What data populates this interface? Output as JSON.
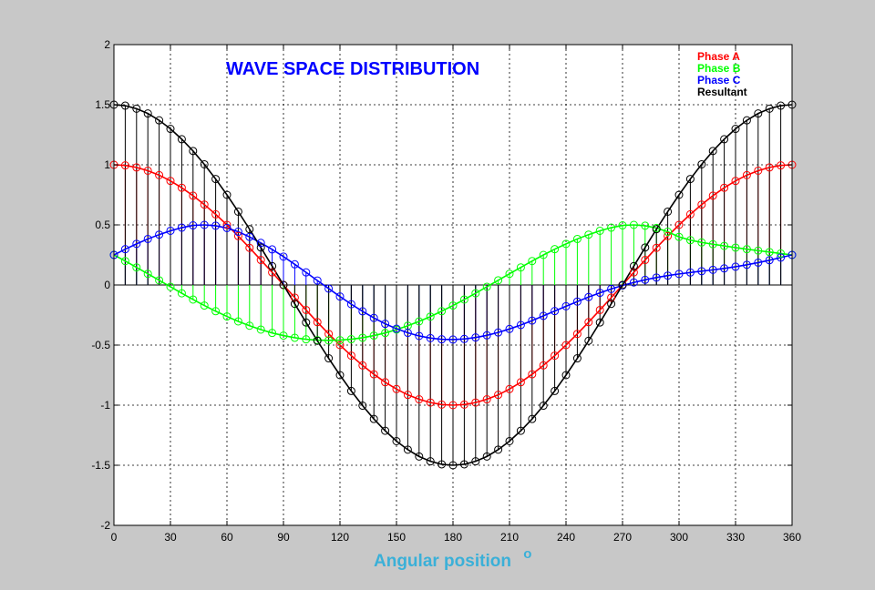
{
  "chart_data": {
    "type": "line",
    "title": "WAVE SPACE DISTRIBUTION",
    "xlabel": "Angular position",
    "xlabel_suffix": "o",
    "ylabel": "",
    "xlim": [
      0,
      360
    ],
    "ylim": [
      -2,
      2
    ],
    "xticks": [
      0,
      30,
      60,
      90,
      120,
      150,
      180,
      210,
      240,
      270,
      300,
      330,
      360
    ],
    "yticks": [
      -2,
      -1.5,
      -1,
      -0.5,
      0,
      0.5,
      1,
      1.5,
      2
    ],
    "grid": true,
    "legend_position": "top-right",
    "marker": "circle",
    "stems": true,
    "series": [
      {
        "name": "Phase A",
        "color": "#ff0000",
        "legend_color": "#ff0000",
        "x": [
          0,
          6,
          12,
          18,
          24,
          30,
          36,
          42,
          48,
          54,
          60,
          66,
          72,
          78,
          84,
          90,
          96,
          102,
          108,
          114,
          120,
          126,
          132,
          138,
          144,
          150,
          156,
          162,
          168,
          174,
          180,
          186,
          192,
          198,
          204,
          210,
          216,
          222,
          228,
          234,
          240,
          246,
          252,
          258,
          264,
          270,
          276,
          282,
          288,
          294,
          300,
          306,
          312,
          318,
          324,
          330,
          336,
          342,
          348,
          354,
          360
        ],
        "values": [
          1.0,
          0.995,
          0.978,
          0.951,
          0.914,
          0.866,
          0.809,
          0.743,
          0.669,
          0.588,
          0.5,
          0.407,
          0.309,
          0.208,
          0.105,
          0.0,
          -0.105,
          -0.208,
          -0.309,
          -0.407,
          -0.5,
          -0.588,
          -0.669,
          -0.743,
          -0.809,
          -0.866,
          -0.914,
          -0.951,
          -0.978,
          -0.995,
          -1.0,
          -0.995,
          -0.978,
          -0.951,
          -0.914,
          -0.866,
          -0.809,
          -0.743,
          -0.669,
          -0.588,
          -0.5,
          -0.407,
          -0.309,
          -0.208,
          -0.105,
          0.0,
          0.105,
          0.208,
          0.309,
          0.407,
          0.5,
          0.588,
          0.669,
          0.743,
          0.809,
          0.866,
          0.914,
          0.951,
          0.978,
          0.995,
          1.0
        ]
      },
      {
        "name": "Phase B",
        "color": "#00ff00",
        "legend_color": "#00ff00",
        "x": [
          0,
          6,
          12,
          18,
          24,
          30,
          36,
          42,
          48,
          54,
          60,
          66,
          72,
          78,
          84,
          90,
          96,
          102,
          108,
          114,
          120,
          126,
          132,
          138,
          144,
          150,
          156,
          162,
          168,
          174,
          180,
          186,
          192,
          198,
          204,
          210,
          216,
          222,
          228,
          234,
          240,
          246,
          252,
          258,
          264,
          270,
          276,
          282,
          288,
          294,
          300,
          306,
          312,
          318,
          324,
          330,
          336,
          342,
          348,
          354,
          360
        ],
        "values": [
          0.25,
          0.199,
          0.146,
          0.093,
          0.039,
          -0.015,
          -0.069,
          -0.121,
          -0.171,
          -0.218,
          -0.262,
          -0.303,
          -0.339,
          -0.371,
          -0.399,
          -0.421,
          -0.439,
          -0.452,
          -0.459,
          -0.461,
          -0.459,
          -0.451,
          -0.439,
          -0.421,
          -0.399,
          -0.371,
          -0.339,
          -0.303,
          -0.263,
          -0.218,
          -0.171,
          -0.121,
          -0.069,
          -0.015,
          0.039,
          0.093,
          0.146,
          0.199,
          0.25,
          0.298,
          0.342,
          0.383,
          0.419,
          0.451,
          0.477,
          0.496,
          0.5,
          0.493,
          0.474,
          0.443,
          0.4,
          0.373,
          0.354,
          0.339,
          0.325,
          0.311,
          0.298,
          0.286,
          0.274,
          0.262,
          0.25
        ]
      },
      {
        "name": "Phase C",
        "color": "#0000ff",
        "legend_color": "#0000ff",
        "x": [
          0,
          6,
          12,
          18,
          24,
          30,
          36,
          42,
          48,
          54,
          60,
          66,
          72,
          78,
          84,
          90,
          96,
          102,
          108,
          114,
          120,
          126,
          132,
          138,
          144,
          150,
          156,
          162,
          168,
          174,
          180,
          186,
          192,
          198,
          204,
          210,
          216,
          222,
          228,
          234,
          240,
          246,
          252,
          258,
          264,
          270,
          276,
          282,
          288,
          294,
          300,
          306,
          312,
          318,
          324,
          330,
          336,
          342,
          348,
          354,
          360
        ],
        "values": [
          0.25,
          0.298,
          0.342,
          0.383,
          0.419,
          0.451,
          0.477,
          0.496,
          0.5,
          0.493,
          0.474,
          0.443,
          0.4,
          0.35,
          0.296,
          0.236,
          0.172,
          0.105,
          0.037,
          -0.03,
          -0.096,
          -0.16,
          -0.219,
          -0.274,
          -0.323,
          -0.364,
          -0.398,
          -0.424,
          -0.442,
          -0.452,
          -0.454,
          -0.449,
          -0.437,
          -0.419,
          -0.395,
          -0.366,
          -0.333,
          -0.296,
          -0.257,
          -0.217,
          -0.177,
          -0.138,
          -0.1,
          -0.065,
          -0.033,
          -0.004,
          0.021,
          0.043,
          0.062,
          0.078,
          0.092,
          0.104,
          0.115,
          0.126,
          0.138,
          0.152,
          0.168,
          0.186,
          0.206,
          0.228,
          0.25
        ]
      },
      {
        "name": "Resultant",
        "color": "#000000",
        "legend_color": "#000000",
        "x": [
          0,
          6,
          12,
          18,
          24,
          30,
          36,
          42,
          48,
          54,
          60,
          66,
          72,
          78,
          84,
          90,
          96,
          102,
          108,
          114,
          120,
          126,
          132,
          138,
          144,
          150,
          156,
          162,
          168,
          174,
          180,
          186,
          192,
          198,
          204,
          210,
          216,
          222,
          228,
          234,
          240,
          246,
          252,
          258,
          264,
          270,
          276,
          282,
          288,
          294,
          300,
          306,
          312,
          318,
          324,
          330,
          336,
          342,
          348,
          354,
          360
        ],
        "values": [
          1.5,
          1.492,
          1.467,
          1.427,
          1.37,
          1.299,
          1.213,
          1.115,
          1.004,
          0.882,
          0.75,
          0.61,
          0.464,
          0.312,
          0.157,
          0.0,
          -0.157,
          -0.312,
          -0.464,
          -0.61,
          -0.75,
          -0.882,
          -1.004,
          -1.115,
          -1.213,
          -1.299,
          -1.37,
          -1.427,
          -1.467,
          -1.492,
          -1.5,
          -1.492,
          -1.467,
          -1.427,
          -1.37,
          -1.299,
          -1.213,
          -1.115,
          -1.004,
          -0.882,
          -0.75,
          -0.61,
          -0.464,
          -0.312,
          -0.157,
          0.0,
          0.157,
          0.312,
          0.464,
          0.61,
          0.75,
          0.882,
          1.004,
          1.115,
          1.213,
          1.299,
          1.37,
          1.427,
          1.467,
          1.492,
          1.5
        ]
      }
    ]
  },
  "colors": {
    "figure_background": "#c8c8c8",
    "plot_background": "#ffffff",
    "title": "#0000ff",
    "xlabel": "#3ab0d8"
  }
}
